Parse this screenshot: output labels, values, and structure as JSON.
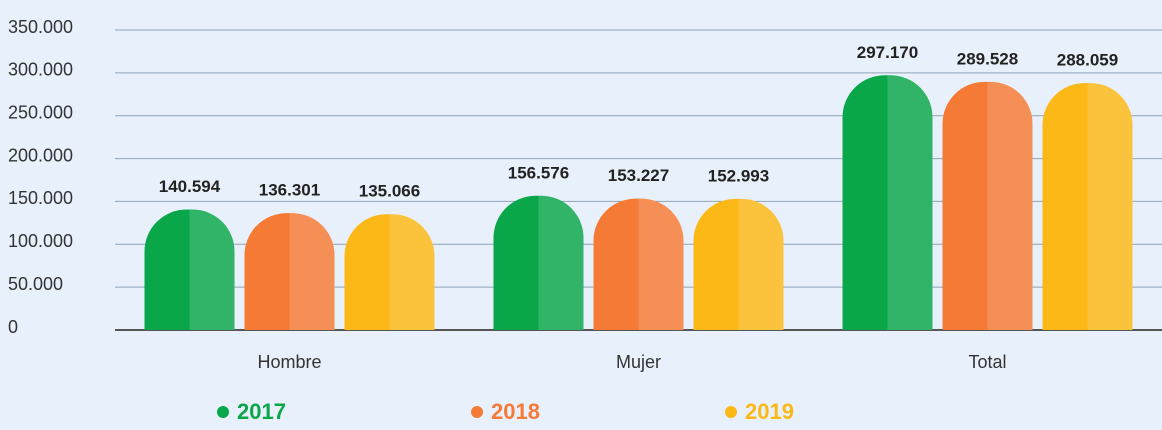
{
  "chart_data": {
    "type": "bar",
    "categories": [
      "Hombre",
      "Mujer",
      "Total"
    ],
    "series": [
      {
        "name": "2017",
        "color": "#0aa64a",
        "values": [
          140594,
          156576,
          297170
        ],
        "value_labels": [
          "140.594",
          "156.576",
          "297.170"
        ]
      },
      {
        "name": "2018",
        "color": "#f47a35",
        "values": [
          136301,
          153227,
          289528
        ],
        "value_labels": [
          "136.301",
          "153.227",
          "289.528"
        ]
      },
      {
        "name": "2019",
        "color": "#fbb817",
        "values": [
          135066,
          152993,
          288059
        ],
        "value_labels": [
          "135.066",
          "152.993",
          "288.059"
        ]
      }
    ],
    "ylim": [
      0,
      350000
    ],
    "yticks": [
      0,
      {
        "value": 50000,
        "label": "50.000"
      },
      {
        "value": 100000,
        "label": "100.000"
      },
      {
        "value": 150000,
        "label": "150.000"
      },
      {
        "value": 200000,
        "label": "200.000"
      },
      {
        "value": 250000,
        "label": "250.000"
      },
      {
        "value": 300000,
        "label": "300.000"
      },
      {
        "value": 350000,
        "label": "350.000"
      }
    ],
    "grid": true,
    "legend": "bottom"
  }
}
